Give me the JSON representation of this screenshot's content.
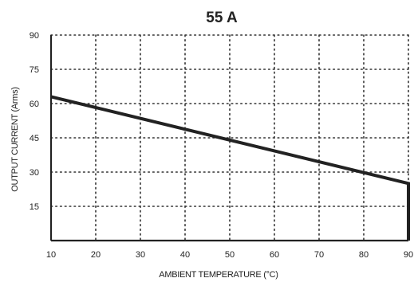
{
  "chart_data": {
    "type": "line",
    "title": "55 A",
    "xlabel": "AMBIENT TEMPERATURE (°C)",
    "ylabel": "OUTPUT CURRENT (Arms)",
    "xlim": [
      10,
      90
    ],
    "ylim": [
      0,
      90
    ],
    "xticks": [
      "10",
      "20",
      "30",
      "40",
      "50",
      "60",
      "70",
      "80",
      "90"
    ],
    "yticks": [
      "15",
      "30",
      "45",
      "60",
      "75",
      "90"
    ],
    "grid": true,
    "series": [
      {
        "x": [
          10,
          90,
          90
        ],
        "y": [
          63,
          25,
          0
        ]
      }
    ]
  }
}
